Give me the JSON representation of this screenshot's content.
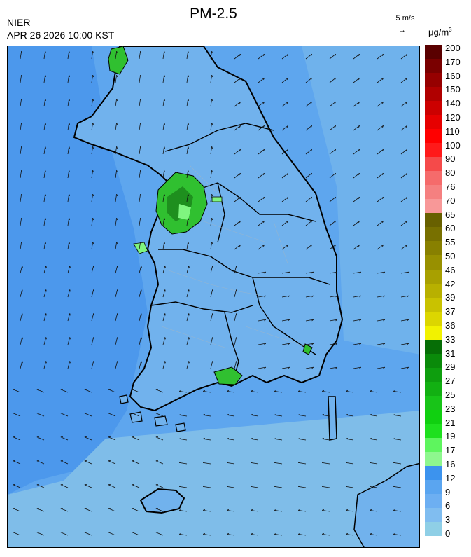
{
  "header": {
    "title": "PM-2.5",
    "agency": "NIER",
    "datetime": "APR 26 2026 10:00 KST",
    "wind_scale": "5 m/s",
    "unit": "μg/m",
    "unit_power": "3"
  },
  "legend": {
    "colors": [
      "#8fcfe6",
      "#80bdf0",
      "#6daff2",
      "#5aa5f0",
      "#3c93ee",
      "#8ef78e",
      "#5ef55e",
      "#1ee01e",
      "#10d010",
      "#18c418",
      "#12b012",
      "#0e9e0e",
      "#0a8a0a",
      "#066e06",
      "#f2f200",
      "#dcd600",
      "#c9c200",
      "#b8b000",
      "#a8a000",
      "#989000",
      "#888000",
      "#787000",
      "#686000",
      "#f89898",
      "#f58080",
      "#f56b6b",
      "#f54a4a",
      "#ff1a1a",
      "#ff0000",
      "#e60000",
      "#cc0000",
      "#b00000",
      "#960000",
      "#7a0000",
      "#5a0000"
    ],
    "labels": [
      "0",
      "3",
      "6",
      "9",
      "12",
      "16",
      "17",
      "19",
      "21",
      "23",
      "25",
      "27",
      "29",
      "31",
      "33",
      "36",
      "37",
      "39",
      "42",
      "46",
      "50",
      "55",
      "60",
      "65",
      "70",
      "76",
      "80",
      "90",
      "100",
      "110",
      "120",
      "140",
      "150",
      "160",
      "170",
      "200"
    ]
  },
  "map": {
    "sea_color": "#6aabee",
    "land_color": "#78b4ec",
    "high_color": "#30c030"
  }
}
